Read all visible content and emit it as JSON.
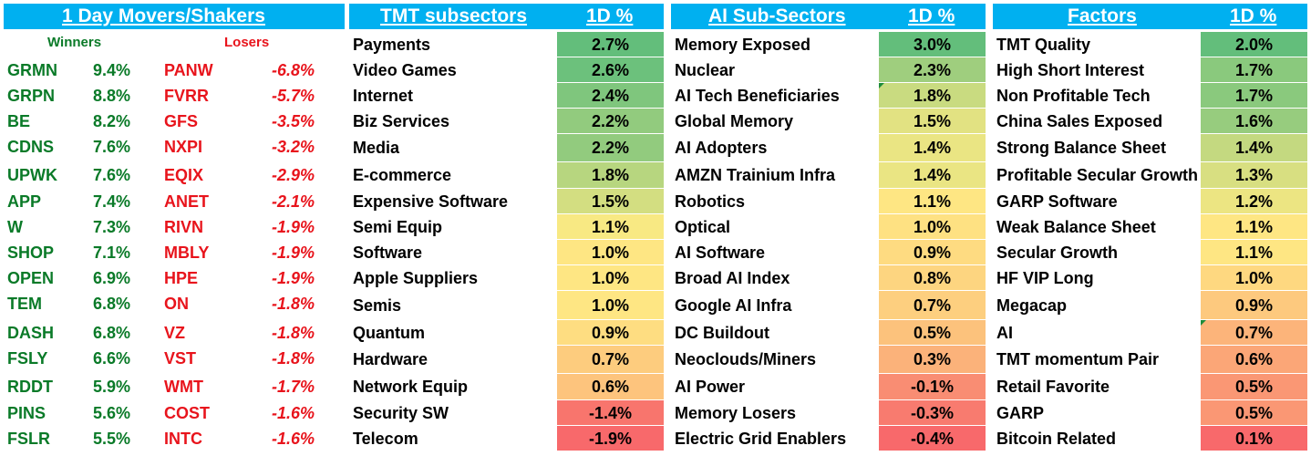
{
  "movers": {
    "title": "1 Day Movers/Shakers",
    "winners_label": "Winners",
    "losers_label": "Losers",
    "winners": [
      {
        "ticker": "GRMN",
        "pct": "9.4%"
      },
      {
        "ticker": "GRPN",
        "pct": "8.8%"
      },
      {
        "ticker": "BE",
        "pct": "8.2%"
      },
      {
        "ticker": "CDNS",
        "pct": "7.6%"
      },
      {
        "ticker": "UPWK",
        "pct": "7.6%"
      },
      {
        "ticker": "APP",
        "pct": "7.4%"
      },
      {
        "ticker": "W",
        "pct": "7.3%"
      },
      {
        "ticker": "SHOP",
        "pct": "7.1%"
      },
      {
        "ticker": "OPEN",
        "pct": "6.9%"
      },
      {
        "ticker": "TEM",
        "pct": "6.8%"
      },
      {
        "ticker": "DASH",
        "pct": "6.8%"
      },
      {
        "ticker": "FSLY",
        "pct": "6.6%"
      },
      {
        "ticker": "RDDT",
        "pct": "5.9%"
      },
      {
        "ticker": "PINS",
        "pct": "5.6%"
      },
      {
        "ticker": "FSLR",
        "pct": "5.5%"
      }
    ],
    "losers": [
      {
        "ticker": "PANW",
        "pct": "-6.8%"
      },
      {
        "ticker": "FVRR",
        "pct": "-5.7%"
      },
      {
        "ticker": "GFS",
        "pct": "-3.5%"
      },
      {
        "ticker": "NXPI",
        "pct": "-3.2%"
      },
      {
        "ticker": "EQIX",
        "pct": "-2.9%"
      },
      {
        "ticker": "ANET",
        "pct": "-2.1%"
      },
      {
        "ticker": "RIVN",
        "pct": "-1.9%"
      },
      {
        "ticker": "MBLY",
        "pct": "-1.9%"
      },
      {
        "ticker": "HPE",
        "pct": "-1.9%"
      },
      {
        "ticker": "ON",
        "pct": "-1.8%"
      },
      {
        "ticker": "VZ",
        "pct": "-1.8%"
      },
      {
        "ticker": "VST",
        "pct": "-1.8%"
      },
      {
        "ticker": "WMT",
        "pct": "-1.7%"
      },
      {
        "ticker": "COST",
        "pct": "-1.6%"
      },
      {
        "ticker": "INTC",
        "pct": "-1.6%"
      }
    ]
  },
  "tmt": {
    "title": "TMT subsectors",
    "pct_header": "1D %",
    "rows": [
      {
        "name": "Payments",
        "pct": "2.7%",
        "color": "#63be7b"
      },
      {
        "name": "Video Games",
        "pct": "2.6%",
        "color": "#6cc17c"
      },
      {
        "name": "Internet",
        "pct": "2.4%",
        "color": "#7fc67d"
      },
      {
        "name": "Biz Services",
        "pct": "2.2%",
        "color": "#92cb7e"
      },
      {
        "name": "Media",
        "pct": "2.2%",
        "color": "#92cb7e"
      },
      {
        "name": "E-commerce",
        "pct": "1.8%",
        "color": "#b7d67f"
      },
      {
        "name": "Expensive Software",
        "pct": "1.5%",
        "color": "#d3de81"
      },
      {
        "name": "Semi Equip",
        "pct": "1.1%",
        "color": "#f8e983"
      },
      {
        "name": "Software",
        "pct": "1.0%",
        "color": "#fee683"
      },
      {
        "name": "Apple Suppliers",
        "pct": "1.0%",
        "color": "#fee683"
      },
      {
        "name": "Semis",
        "pct": "1.0%",
        "color": "#fee683"
      },
      {
        "name": "Quantum",
        "pct": "0.9%",
        "color": "#fedd81"
      },
      {
        "name": "Hardware",
        "pct": "0.7%",
        "color": "#fdcc7e"
      },
      {
        "name": "Network Equip",
        "pct": "0.6%",
        "color": "#fdc47d"
      },
      {
        "name": "Security SW",
        "pct": "-1.4%",
        "color": "#f8756d"
      },
      {
        "name": "Telecom",
        "pct": "-1.9%",
        "color": "#f8696b"
      }
    ]
  },
  "ai": {
    "title": "AI Sub-Sectors",
    "pct_header": "1D %",
    "rows": [
      {
        "name": "Memory Exposed",
        "pct": "3.0%",
        "color": "#63be7b"
      },
      {
        "name": "Nuclear",
        "pct": "2.3%",
        "color": "#9fce7e"
      },
      {
        "name": "AI Tech Beneficiaries",
        "pct": "1.8%",
        "color": "#c9db80"
      },
      {
        "name": "Global Memory",
        "pct": "1.5%",
        "color": "#e2e282"
      },
      {
        "name": "AI Adopters",
        "pct": "1.4%",
        "color": "#eae583"
      },
      {
        "name": "AMZN Trainium Infra",
        "pct": "1.4%",
        "color": "#eae583"
      },
      {
        "name": "Robotics",
        "pct": "1.1%",
        "color": "#fee683"
      },
      {
        "name": "Optical",
        "pct": "1.0%",
        "color": "#fee182"
      },
      {
        "name": "AI Software",
        "pct": "0.9%",
        "color": "#fedb81"
      },
      {
        "name": "Broad AI Index",
        "pct": "0.8%",
        "color": "#fdd580"
      },
      {
        "name": "Google AI Infra",
        "pct": "0.7%",
        "color": "#fdcf7f"
      },
      {
        "name": "DC Buildout",
        "pct": "0.5%",
        "color": "#fcc27c"
      },
      {
        "name": "Neoclouds/Miners",
        "pct": "0.3%",
        "color": "#fbb27a"
      },
      {
        "name": "AI Power",
        "pct": "-0.1%",
        "color": "#f98d73"
      },
      {
        "name": "Memory Losers",
        "pct": "-0.3%",
        "color": "#f87b6f"
      },
      {
        "name": "Electric Grid Enablers",
        "pct": "-0.4%",
        "color": "#f8696b"
      }
    ]
  },
  "factors": {
    "title": "Factors",
    "pct_header": "1D %",
    "rows": [
      {
        "name": "TMT Quality",
        "pct": "2.0%",
        "color": "#63be7b"
      },
      {
        "name": "High Short Interest",
        "pct": "1.7%",
        "color": "#8ac97d"
      },
      {
        "name": "Non Profitable Tech",
        "pct": "1.7%",
        "color": "#8ac97d"
      },
      {
        "name": "China Sales Exposed",
        "pct": "1.6%",
        "color": "#97cc7e"
      },
      {
        "name": "Strong Balance Sheet",
        "pct": "1.4%",
        "color": "#c4d980"
      },
      {
        "name": "Profitable Secular Growth",
        "pct": "1.3%",
        "color": "#d8df81"
      },
      {
        "name": "GARP Software",
        "pct": "1.2%",
        "color": "#ece582"
      },
      {
        "name": "Weak Balance Sheet",
        "pct": "1.1%",
        "color": "#fee683"
      },
      {
        "name": "Secular Growth",
        "pct": "1.1%",
        "color": "#fee683"
      },
      {
        "name": "HF VIP Long",
        "pct": "1.0%",
        "color": "#fed880"
      },
      {
        "name": "Megacap",
        "pct": "0.9%",
        "color": "#fdc97e"
      },
      {
        "name": "AI",
        "pct": "0.7%",
        "color": "#fcb47a"
      },
      {
        "name": "TMT momentum Pair",
        "pct": "0.6%",
        "color": "#fba677"
      },
      {
        "name": "Retail Favorite",
        "pct": "0.5%",
        "color": "#fa9774"
      },
      {
        "name": "GARP",
        "pct": "0.5%",
        "color": "#fa9774"
      },
      {
        "name": "Bitcoin Related",
        "pct": "0.1%",
        "color": "#f8696b"
      }
    ]
  }
}
